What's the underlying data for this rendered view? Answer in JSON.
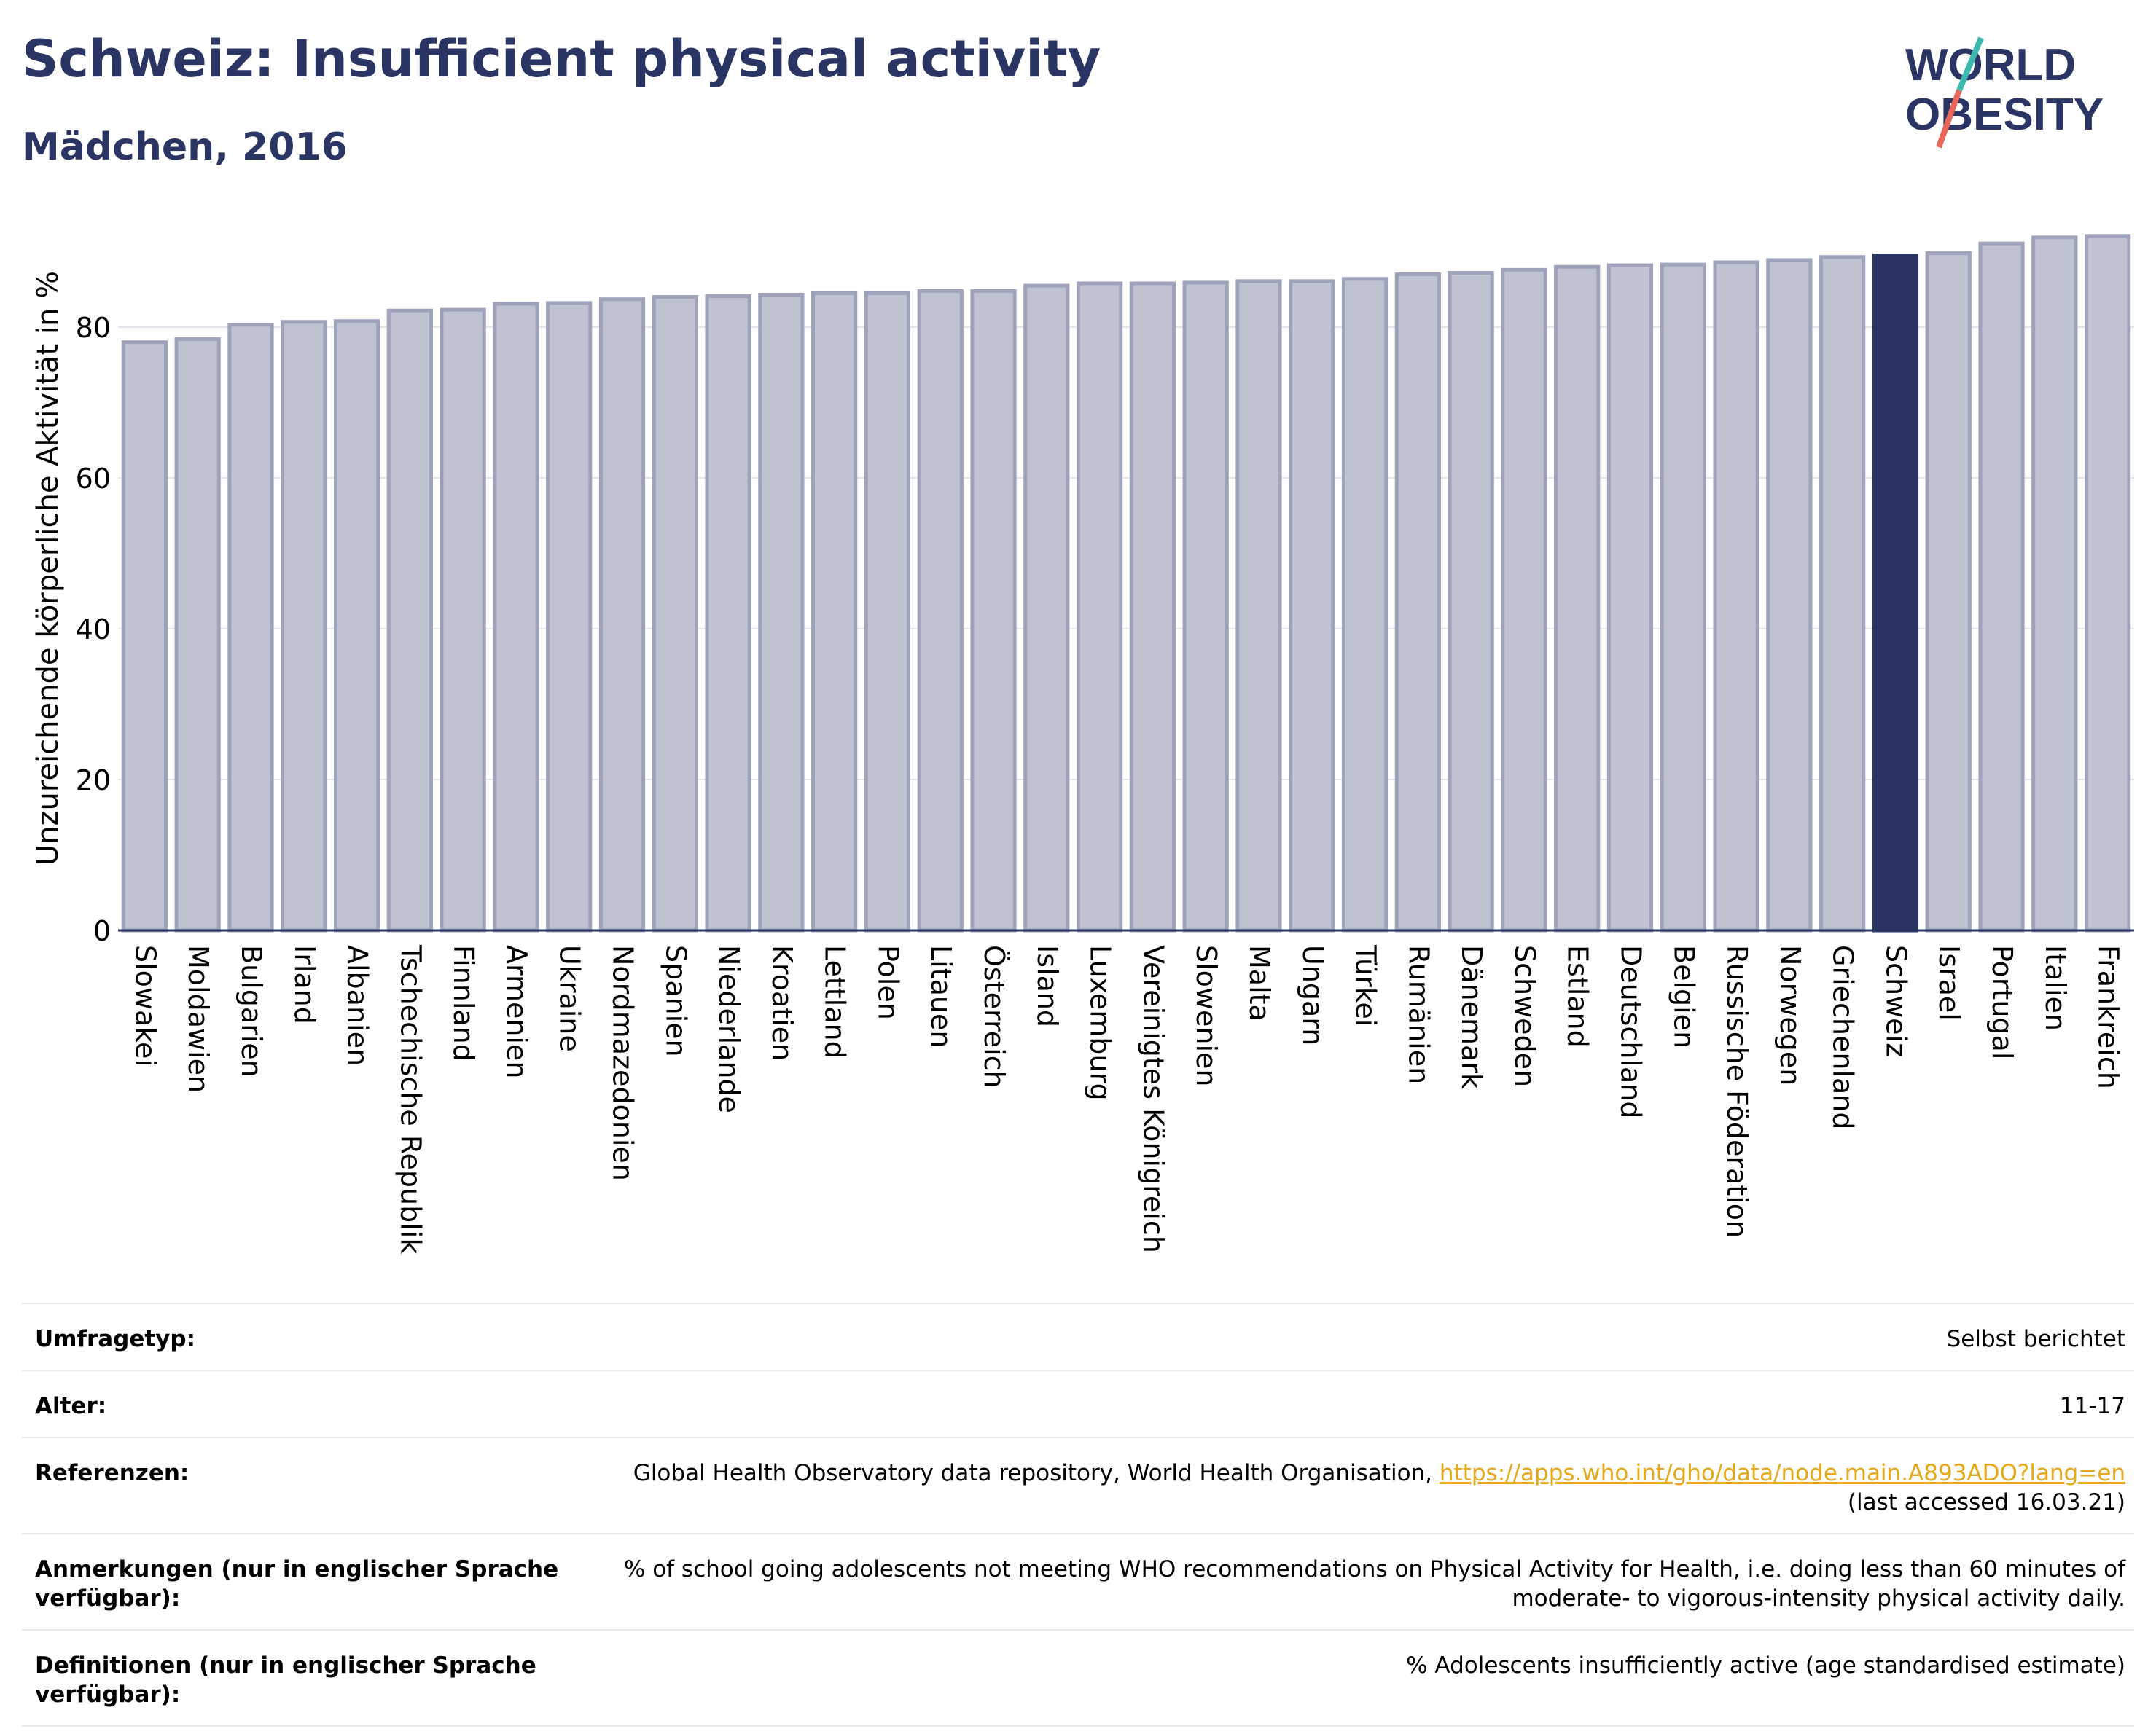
{
  "header": {
    "title": "Schweiz: Insufficient physical activity",
    "subtitle": "Mädchen, 2016",
    "logo_line1": "WORLD",
    "logo_line2": "OBESITY"
  },
  "colors": {
    "brand": "#2b3563",
    "bar_default": "#bfc2d1",
    "bar_default_stroke": "#9ea3bb",
    "bar_highlight": "#2b3563",
    "link": "#e6a817",
    "logo_accent_teal": "#3bb9b0",
    "logo_accent_coral": "#e8675a"
  },
  "chart_data": {
    "type": "bar",
    "title": "Schweiz: Insufficient physical activity",
    "subtitle": "Mädchen, 2016",
    "xlabel": "",
    "ylabel": "Unzureichende körperliche Aktivität in %",
    "ylim": [
      0,
      95
    ],
    "yticks": [
      0,
      20,
      40,
      60,
      80
    ],
    "grid": true,
    "highlight": "Schweiz",
    "categories": [
      "Slowakei",
      "Moldawien",
      "Bulgarien",
      "Irland",
      "Albanien",
      "Tschechische Republik",
      "Finnland",
      "Armenien",
      "Ukraine",
      "Nordmazedonien",
      "Spanien",
      "Niederlande",
      "Kroatien",
      "Lettland",
      "Polen",
      "Litauen",
      "Österreich",
      "Island",
      "Luxemburg",
      "Vereinigtes Königreich",
      "Slowenien",
      "Malta",
      "Ungarn",
      "Türkei",
      "Rumänien",
      "Dänemark",
      "Schweden",
      "Estland",
      "Deutschland",
      "Belgien",
      "Russische Föderation",
      "Norwegen",
      "Griechenland",
      "Schweiz",
      "Israel",
      "Portugal",
      "Italien",
      "Frankreich"
    ],
    "values": [
      78.0,
      78.4,
      80.3,
      80.7,
      80.8,
      82.2,
      82.3,
      83.1,
      83.2,
      83.7,
      84.0,
      84.1,
      84.3,
      84.5,
      84.5,
      84.8,
      84.8,
      85.5,
      85.8,
      85.8,
      85.9,
      86.1,
      86.1,
      86.4,
      87.0,
      87.2,
      87.6,
      88.0,
      88.2,
      88.3,
      88.6,
      88.9,
      89.3,
      89.5,
      89.8,
      91.1,
      91.9,
      92.1
    ]
  },
  "info": {
    "rows": [
      {
        "label": "Umfragetyp:",
        "value": "Selbst berichtet"
      },
      {
        "label": "Alter:",
        "value": "11-17"
      },
      {
        "label": "Referenzen:",
        "value": "Global Health Observatory data repository, World Health Organisation,",
        "link": "https://apps.who.int/gho/data/node.main.A893ADO?lang=en",
        "value2": "(last accessed 16.03.21)"
      },
      {
        "label": "Anmerkungen (nur in englischer Sprache verfügbar):",
        "value": "% of school going adolescents not meeting WHO recommendations on Physical Activity for Health, i.e. doing less than 60 minutes of moderate- to vigorous-intensity physical activity daily."
      },
      {
        "label": "Definitionen (nur in englischer Sprache verfügbar):",
        "value": "% Adolescents insufficiently active (age standardised estimate)"
      }
    ]
  }
}
